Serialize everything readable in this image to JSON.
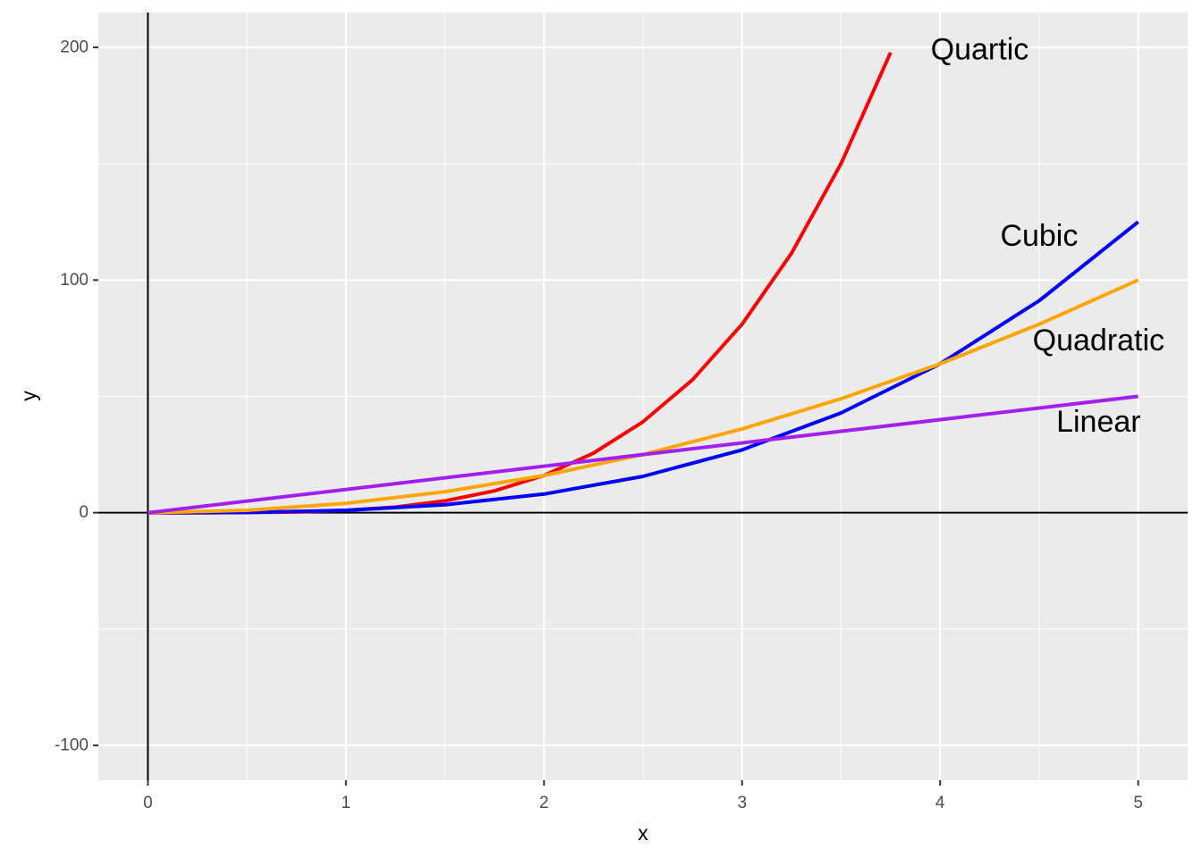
{
  "chart_data": {
    "type": "line",
    "title": "",
    "xlabel": "x",
    "ylabel": "y",
    "xlim": [
      -0.25,
      5.25
    ],
    "ylim": [
      -115,
      215
    ],
    "x_ticks": [
      0,
      1,
      2,
      3,
      4,
      5
    ],
    "x_tick_labels": [
      "0",
      "1",
      "2",
      "3",
      "4",
      "5"
    ],
    "y_ticks": [
      -100,
      0,
      100,
      200
    ],
    "y_tick_labels": [
      "-100",
      "0",
      "100",
      "200"
    ],
    "grid": true,
    "reference_lines": {
      "x": 0,
      "y": 0
    },
    "legend": "none",
    "series": [
      {
        "name": "Quartic",
        "color": "#ff0000",
        "x": [
          0,
          0.25,
          0.5,
          0.75,
          1,
          1.25,
          1.5,
          1.75,
          2,
          2.25,
          2.5,
          2.75,
          3,
          3.25,
          3.5,
          3.75
        ],
        "values": [
          0,
          0.0,
          0.1,
          0.3,
          1,
          2.4,
          5.1,
          9.4,
          16,
          25.6,
          39.1,
          57.2,
          81,
          111.6,
          150.1,
          197.8
        ]
      },
      {
        "name": "Cubic",
        "color": "#0000ff",
        "x": [
          0,
          0.5,
          1,
          1.5,
          2,
          2.5,
          3,
          3.5,
          4,
          4.5,
          5
        ],
        "values": [
          0,
          0.1,
          1,
          3.4,
          8,
          15.6,
          27,
          42.9,
          64,
          91.1,
          125
        ]
      },
      {
        "name": "Quadratic",
        "color": "#ffa500",
        "x": [
          0,
          0.5,
          1,
          1.5,
          2,
          2.5,
          3,
          3.5,
          4,
          4.5,
          5
        ],
        "values": [
          0,
          1,
          4,
          9,
          16,
          25,
          36,
          49,
          64,
          81,
          100
        ]
      },
      {
        "name": "Linear",
        "color": "#a020f0",
        "x": [
          0,
          5
        ],
        "values": [
          0,
          50
        ]
      }
    ],
    "annotations": [
      {
        "text": "Quartic",
        "x": 4.2,
        "y": 199,
        "series": "Quartic"
      },
      {
        "text": "Cubic",
        "x": 4.5,
        "y": 119,
        "series": "Cubic"
      },
      {
        "text": "Quadratic",
        "x": 4.8,
        "y": 74,
        "series": "Quadratic"
      },
      {
        "text": "Linear",
        "x": 4.8,
        "y": 39,
        "series": "Linear"
      }
    ]
  }
}
